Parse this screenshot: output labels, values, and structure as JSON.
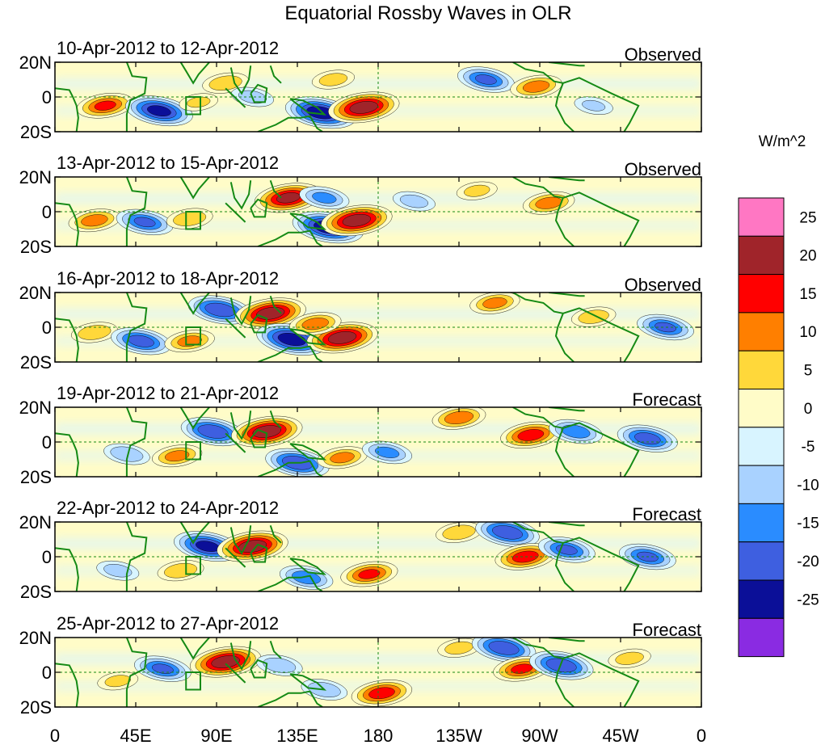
{
  "chart_data": {
    "type": "heatmap",
    "title": "Equatorial Rossby Waves in OLR",
    "units_label": "W/m^2",
    "x_ticks": [
      "0",
      "45E",
      "90E",
      "135E",
      "180",
      "135W",
      "90W",
      "45W",
      "0"
    ],
    "y_ticks": [
      "20N",
      "0",
      "20S"
    ],
    "xlim": [
      0,
      360
    ],
    "ylim": [
      -20,
      20
    ],
    "colorbar": {
      "levels": [
        "25",
        "20",
        "15",
        "10",
        "5",
        "0",
        "-5",
        "-10",
        "-15",
        "-20",
        "-25"
      ],
      "colors": [
        "#ff77c3",
        "#a0242a",
        "#ff0000",
        "#ff7f00",
        "#ffd83a",
        "#fffcc8",
        "#d8f4ff",
        "#a9d2ff",
        "#2a8cff",
        "#3e5fe0",
        "#0b0f98",
        "#8a2be2"
      ]
    },
    "panels": [
      {
        "date_range": "10-Apr-2012 to 12-Apr-2012",
        "label": "Observed",
        "anomalies": [
          {
            "lon": 28,
            "lat": -5,
            "value": 18
          },
          {
            "lon": 58,
            "lat": -8,
            "value": -24
          },
          {
            "lon": 80,
            "lat": -3,
            "value": 8
          },
          {
            "lon": 95,
            "lat": 8,
            "value": 12
          },
          {
            "lon": 110,
            "lat": 0,
            "value": -10
          },
          {
            "lon": 148,
            "lat": -9,
            "value": -26
          },
          {
            "lon": 172,
            "lat": -6,
            "value": 26
          },
          {
            "lon": 155,
            "lat": 10,
            "value": 10
          },
          {
            "lon": 240,
            "lat": 10,
            "value": -18
          },
          {
            "lon": 268,
            "lat": 6,
            "value": 15
          },
          {
            "lon": 300,
            "lat": -5,
            "value": -8
          }
        ]
      },
      {
        "date_range": "13-Apr-2012 to 15-Apr-2012",
        "label": "Observed",
        "anomalies": [
          {
            "lon": 22,
            "lat": -5,
            "value": 15
          },
          {
            "lon": 50,
            "lat": -6,
            "value": -18
          },
          {
            "lon": 75,
            "lat": -4,
            "value": 12
          },
          {
            "lon": 130,
            "lat": 8,
            "value": 24
          },
          {
            "lon": 152,
            "lat": -9,
            "value": -26
          },
          {
            "lon": 168,
            "lat": -5,
            "value": 26
          },
          {
            "lon": 150,
            "lat": 8,
            "value": -14
          },
          {
            "lon": 200,
            "lat": 6,
            "value": -10
          },
          {
            "lon": 275,
            "lat": 5,
            "value": 15
          },
          {
            "lon": 235,
            "lat": 12,
            "value": 9
          }
        ]
      },
      {
        "date_range": "16-Apr-2012 to 18-Apr-2012",
        "label": "Observed",
        "anomalies": [
          {
            "lon": 22,
            "lat": -3,
            "value": 12
          },
          {
            "lon": 48,
            "lat": -8,
            "value": -20
          },
          {
            "lon": 75,
            "lat": -8,
            "value": 14
          },
          {
            "lon": 92,
            "lat": 10,
            "value": -22
          },
          {
            "lon": 120,
            "lat": 8,
            "value": 26
          },
          {
            "lon": 132,
            "lat": -7,
            "value": -26
          },
          {
            "lon": 160,
            "lat": -6,
            "value": 26
          },
          {
            "lon": 145,
            "lat": 2,
            "value": 15
          },
          {
            "lon": 245,
            "lat": 14,
            "value": 14
          },
          {
            "lon": 300,
            "lat": 6,
            "value": 11
          },
          {
            "lon": 340,
            "lat": 0,
            "value": -18
          }
        ]
      },
      {
        "date_range": "19-Apr-2012 to 21-Apr-2012",
        "label": "Forecast",
        "anomalies": [
          {
            "lon": 40,
            "lat": -7,
            "value": -12
          },
          {
            "lon": 68,
            "lat": -8,
            "value": 14
          },
          {
            "lon": 88,
            "lat": 6,
            "value": -22
          },
          {
            "lon": 118,
            "lat": 6,
            "value": 26
          },
          {
            "lon": 135,
            "lat": -12,
            "value": -22
          },
          {
            "lon": 160,
            "lat": -9,
            "value": 14
          },
          {
            "lon": 185,
            "lat": -6,
            "value": -14
          },
          {
            "lon": 225,
            "lat": 14,
            "value": 16
          },
          {
            "lon": 265,
            "lat": 4,
            "value": 20
          },
          {
            "lon": 290,
            "lat": 6,
            "value": -16
          },
          {
            "lon": 330,
            "lat": 2,
            "value": -20
          }
        ]
      },
      {
        "date_range": "22-Apr-2012 to 24-Apr-2012",
        "label": "Forecast",
        "anomalies": [
          {
            "lon": 35,
            "lat": -8,
            "value": -10
          },
          {
            "lon": 70,
            "lat": -8,
            "value": 12
          },
          {
            "lon": 85,
            "lat": 6,
            "value": -24
          },
          {
            "lon": 110,
            "lat": 6,
            "value": 26
          },
          {
            "lon": 140,
            "lat": -12,
            "value": -16
          },
          {
            "lon": 175,
            "lat": -10,
            "value": 18
          },
          {
            "lon": 225,
            "lat": 14,
            "value": 12
          },
          {
            "lon": 252,
            "lat": 14,
            "value": -22
          },
          {
            "lon": 262,
            "lat": 0,
            "value": 20
          },
          {
            "lon": 285,
            "lat": 4,
            "value": -18
          },
          {
            "lon": 330,
            "lat": 0,
            "value": -18
          }
        ]
      },
      {
        "date_range": "25-Apr-2012 to 27-Apr-2012",
        "label": "Forecast",
        "anomalies": [
          {
            "lon": 35,
            "lat": -5,
            "value": 9
          },
          {
            "lon": 60,
            "lat": 2,
            "value": -18
          },
          {
            "lon": 95,
            "lat": 6,
            "value": 26
          },
          {
            "lon": 125,
            "lat": 4,
            "value": -12
          },
          {
            "lon": 150,
            "lat": -10,
            "value": -12
          },
          {
            "lon": 182,
            "lat": -12,
            "value": 20
          },
          {
            "lon": 225,
            "lat": 14,
            "value": 10
          },
          {
            "lon": 250,
            "lat": 14,
            "value": -22
          },
          {
            "lon": 260,
            "lat": 2,
            "value": 18
          },
          {
            "lon": 282,
            "lat": 4,
            "value": -22
          },
          {
            "lon": 320,
            "lat": 8,
            "value": 10
          }
        ]
      }
    ]
  }
}
